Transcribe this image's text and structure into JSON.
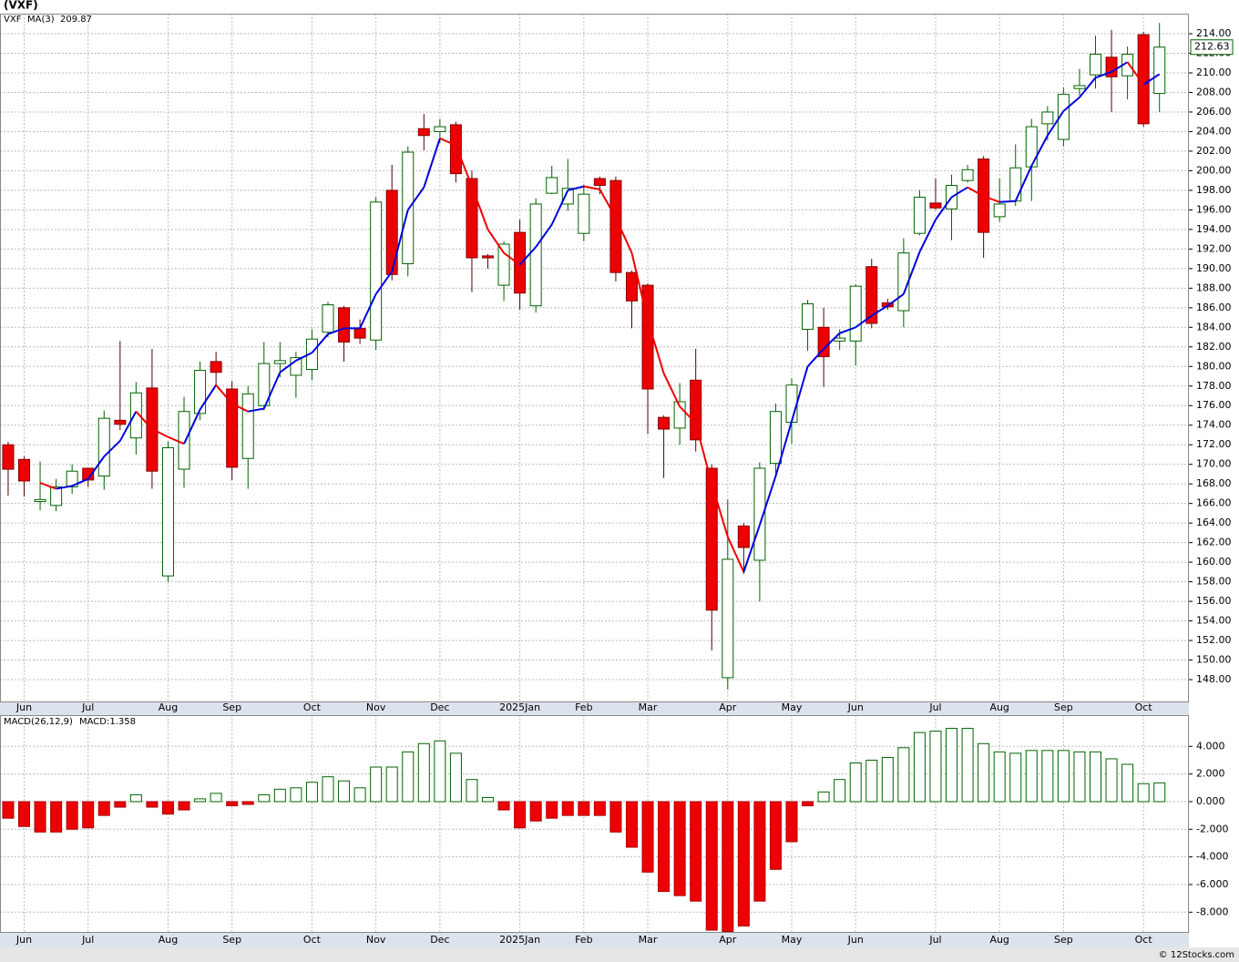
{
  "chart_data": [
    {
      "type": "candlestick",
      "title": "(VXF)",
      "symbol": "VXF",
      "up_color": "#006400",
      "down_color": "#ee0000",
      "ma_up_color": "#0000dd",
      "ma_down_color": "#ee0000",
      "open": [
        172,
        170.5,
        166.2,
        165.8,
        167.7,
        169.6,
        168.8,
        174.5,
        172.7,
        177.8,
        158.6,
        169.5,
        175.2,
        180.5,
        177.7,
        170.6,
        176,
        180.3,
        179.1,
        179.7,
        183.5,
        186,
        183.9,
        182.7,
        198,
        190.5,
        204.3,
        204,
        204.7,
        199.2,
        191.3,
        188.3,
        193.7,
        186.2,
        197.7,
        196.6,
        193.6,
        199.2,
        199,
        189.6,
        188.3,
        174.8,
        173.7,
        178.6,
        169.6,
        148.2,
        163.7,
        160.2,
        170.1,
        174.3,
        183.8,
        184,
        182.6,
        182.6,
        190.2,
        186.5,
        185.7,
        193.6,
        196.7,
        196.1,
        199,
        201.2,
        195.3,
        196.9,
        200.4,
        204.8,
        203.2,
        208.4,
        209.8,
        211.6,
        209.7,
        213.9,
        207.9
      ],
      "high": [
        172.3,
        170.8,
        170.3,
        168.5,
        170,
        169.6,
        175.5,
        182.6,
        178.4,
        181.8,
        172.3,
        176.9,
        180.5,
        181.5,
        178.5,
        178,
        182.5,
        182.5,
        181.5,
        183.8,
        186.6,
        186.2,
        184.8,
        197.3,
        200.6,
        202.5,
        205.8,
        205.3,
        205,
        200,
        191.5,
        192.8,
        195,
        197.2,
        200.5,
        201.2,
        198.6,
        199.4,
        199.4,
        189.8,
        188.5,
        175,
        178.3,
        181.8,
        170,
        166.4,
        164,
        170.2,
        176.2,
        178.8,
        186.8,
        186,
        183.8,
        188.4,
        191,
        186.9,
        193.1,
        198,
        199.2,
        199.6,
        200.6,
        201.5,
        199.2,
        202.7,
        205.3,
        206.6,
        208.5,
        210.4,
        213.8,
        214.4,
        212.7,
        214.2,
        215.1
      ],
      "low": [
        166.8,
        166.7,
        165.3,
        165.2,
        167,
        167.7,
        167.4,
        173.5,
        171,
        167.5,
        158,
        167.6,
        174.5,
        178,
        168.4,
        167.5,
        175.5,
        178.9,
        176.8,
        178.6,
        183,
        180.5,
        182.3,
        181.7,
        188.8,
        189.2,
        202.1,
        202.8,
        198.8,
        187.6,
        190,
        186.7,
        185.8,
        185.5,
        197.6,
        195.9,
        192.8,
        197.6,
        188.7,
        183.9,
        173.1,
        168.6,
        172,
        171.3,
        151,
        147,
        158.8,
        156,
        168.6,
        172.1,
        181.6,
        177.9,
        181.7,
        180.1,
        183.9,
        185.8,
        184,
        193.4,
        196,
        192.9,
        198.8,
        191.1,
        194.8,
        196.4,
        196.9,
        203.1,
        202.5,
        207.7,
        208.4,
        206,
        207.3,
        204.5,
        206
      ],
      "close": [
        169.5,
        168.3,
        166.4,
        167.7,
        169.3,
        168.4,
        174.7,
        174.1,
        177.3,
        169.3,
        171.7,
        175.4,
        179.6,
        179.4,
        169.7,
        177.2,
        180.3,
        180.6,
        180.9,
        182.8,
        186.3,
        182.5,
        182.9,
        196.8,
        189.4,
        201.9,
        203.6,
        204.5,
        199.7,
        191.1,
        191.1,
        192.5,
        187.5,
        196.6,
        199.3,
        198.2,
        197.6,
        198.5,
        189.6,
        186.7,
        177.7,
        173.6,
        176.4,
        172.5,
        155.1,
        160.3,
        161.5,
        169.6,
        175.4,
        178.1,
        186.4,
        181,
        182.9,
        188.2,
        184.4,
        186.1,
        191.6,
        197.3,
        196.2,
        198.5,
        200.1,
        193.7,
        196.6,
        200.3,
        204.5,
        206,
        207.8,
        208.7,
        211.9,
        209.6,
        211.9,
        204.8,
        212.63
      ],
      "ma": {
        "name": "MA(3)",
        "values": [
          null,
          null,
          168.1,
          167.5,
          167.8,
          168.5,
          170.8,
          172.4,
          175.4,
          173.6,
          172.8,
          172.1,
          175.6,
          178.1,
          176.2,
          175.4,
          175.7,
          179.4,
          180.6,
          181.4,
          183.3,
          183.9,
          183.9,
          187.4,
          189.7,
          196.0,
          198.3,
          203.3,
          202.6,
          198.4,
          194.0,
          191.6,
          190.4,
          192.2,
          194.5,
          198.0,
          198.4,
          198.1,
          195.2,
          191.6,
          184.7,
          179.3,
          175.9,
          174.2,
          168.0,
          162.6,
          159.0,
          163.8,
          168.8,
          174.4,
          180.0,
          181.8,
          183.4,
          184.0,
          185.2,
          186.2,
          187.4,
          191.7,
          195.0,
          197.3,
          198.3,
          197.4,
          196.8,
          196.9,
          200.5,
          203.6,
          206.1,
          207.5,
          209.5,
          210.1,
          211.1,
          208.8,
          209.87
        ]
      },
      "xlim": [
        -0.51,
        73.84
      ],
      "ylim": [
        145.77,
        216.05
      ],
      "xticks": [
        {
          "value": 1,
          "label": "Jun"
        },
        {
          "value": 5,
          "label": "Jul"
        },
        {
          "value": 10,
          "label": "Aug"
        },
        {
          "value": 14,
          "label": "Sep"
        },
        {
          "value": 19,
          "label": "Oct"
        },
        {
          "value": 23,
          "label": "Nov"
        },
        {
          "value": 27,
          "label": "Dec"
        },
        {
          "value": 32,
          "label": "2025Jan"
        },
        {
          "value": 36,
          "label": "Feb"
        },
        {
          "value": 40,
          "label": "Mar"
        },
        {
          "value": 45,
          "label": "Apr"
        },
        {
          "value": 49,
          "label": "May"
        },
        {
          "value": 53,
          "label": "Jun"
        },
        {
          "value": 58,
          "label": "Jul"
        },
        {
          "value": 62,
          "label": "Aug"
        },
        {
          "value": 66,
          "label": "Sep"
        },
        {
          "value": 71,
          "label": "Oct"
        }
      ],
      "yticks": [
        {
          "value": 148,
          "label": "148.00"
        },
        {
          "value": 150,
          "label": "150.00"
        },
        {
          "value": 152,
          "label": "152.00"
        },
        {
          "value": 154,
          "label": "154.00"
        },
        {
          "value": 156,
          "label": "156.00"
        },
        {
          "value": 158,
          "label": "158.00"
        },
        {
          "value": 160,
          "label": "160.00"
        },
        {
          "value": 162,
          "label": "162.00"
        },
        {
          "value": 164,
          "label": "164.00"
        },
        {
          "value": 166,
          "label": "166.00"
        },
        {
          "value": 168,
          "label": "168.00"
        },
        {
          "value": 170,
          "label": "170.00"
        },
        {
          "value": 172,
          "label": "172.00"
        },
        {
          "value": 174,
          "label": "174.00"
        },
        {
          "value": 176,
          "label": "176.00"
        },
        {
          "value": 178,
          "label": "178.00"
        },
        {
          "value": 180,
          "label": "180.00"
        },
        {
          "value": 182,
          "label": "182.00"
        },
        {
          "value": 184,
          "label": "184.00"
        },
        {
          "value": 186,
          "label": "186.00"
        },
        {
          "value": 188,
          "label": "188.00"
        },
        {
          "value": 190,
          "label": "190.00"
        },
        {
          "value": 192,
          "label": "192.00"
        },
        {
          "value": 194,
          "label": "194.00"
        },
        {
          "value": 196,
          "label": "196.00"
        },
        {
          "value": 198,
          "label": "198.00"
        },
        {
          "value": 200,
          "label": "200.00"
        },
        {
          "value": 202,
          "label": "202.00"
        },
        {
          "value": 204,
          "label": "204.00"
        },
        {
          "value": 206,
          "label": "206.00"
        },
        {
          "value": 208,
          "label": "208.00"
        },
        {
          "value": 210,
          "label": "210.00"
        },
        {
          "value": 212,
          "label": "212.00"
        },
        {
          "value": 214,
          "label": "214.00"
        }
      ],
      "grid": true
    },
    {
      "type": "bar",
      "title": "MACD(26,12,9)",
      "legend_label": "MACD:1.358",
      "series": [
        {
          "name": "MACD",
          "pos_color": "#006400",
          "neg_color": "#ee0000",
          "values": [
            -1.2,
            -1.8,
            -2.2,
            -2.2,
            -2.0,
            -1.9,
            -1.0,
            -0.4,
            0.5,
            -0.4,
            -0.9,
            -0.6,
            0.2,
            0.6,
            -0.3,
            -0.2,
            0.5,
            0.9,
            1.0,
            1.4,
            1.8,
            1.5,
            1.0,
            2.5,
            2.5,
            3.6,
            4.2,
            4.4,
            3.5,
            1.6,
            0.3,
            -0.6,
            -1.9,
            -1.4,
            -1.2,
            -1.0,
            -1.0,
            -1.0,
            -2.2,
            -3.3,
            -5.1,
            -6.5,
            -6.8,
            -7.2,
            -9.3,
            -9.4,
            -9.0,
            -7.2,
            -4.9,
            -2.9,
            -0.3,
            0.7,
            1.6,
            2.8,
            3.0,
            3.2,
            3.9,
            5.0,
            5.1,
            5.3,
            5.3,
            4.2,
            3.6,
            3.5,
            3.7,
            3.7,
            3.7,
            3.6,
            3.6,
            3.1,
            2.7,
            1.3,
            1.358
          ]
        }
      ],
      "xlim": [
        -0.51,
        73.84
      ],
      "ylim": [
        -9.43,
        6.26
      ],
      "yticks": [
        {
          "value": -8,
          "label": "-8.000"
        },
        {
          "value": -6,
          "label": "-6.000"
        },
        {
          "value": -4,
          "label": "-4.000"
        },
        {
          "value": -2,
          "label": "-2.000"
        },
        {
          "value": 0,
          "label": "0.000"
        },
        {
          "value": 2,
          "label": "2.000"
        },
        {
          "value": 4,
          "label": "4.000"
        }
      ],
      "grid": true
    }
  ],
  "footer": "© 12Stocks.com"
}
